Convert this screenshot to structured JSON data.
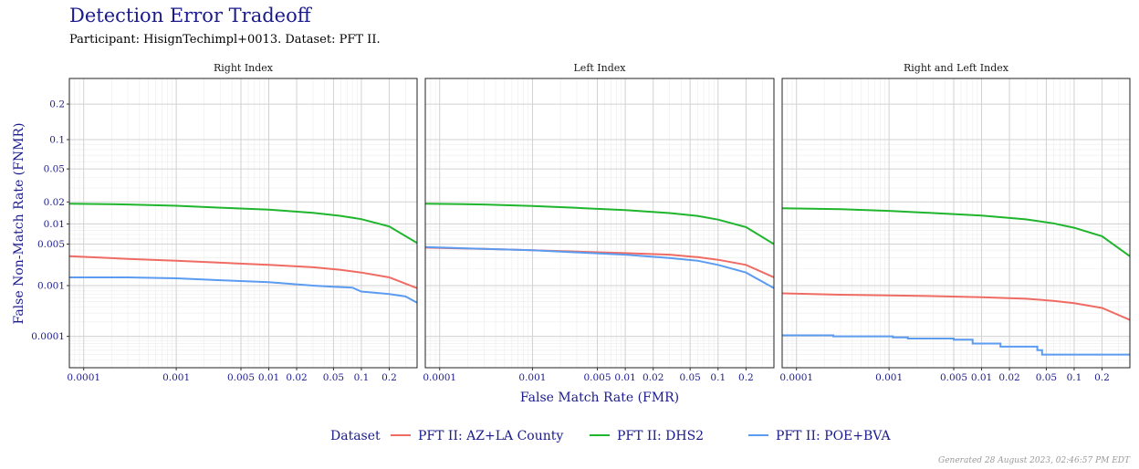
{
  "header": {
    "title": "Detection Error Tradeoff",
    "subtitle": "Participant: HisignTechimpl+0013. Dataset: PFT II."
  },
  "footer": {
    "generated": "Generated 28 August 2023, 02:46:57 PM EDT"
  },
  "colors": {
    "title": "#1a1a8c",
    "axis_text": "#1a1a8c",
    "grid_major": "#d2d2d2",
    "grid_minor": "#ececec"
  },
  "chart_data": {
    "type": "line",
    "xlabel": "False Match Rate (FMR)",
    "ylabel": "False Non-Match Rate (FNMR)",
    "x_scale": "log",
    "y_scale": "probit",
    "xlim": [
      7e-05,
      0.4
    ],
    "ylim": [
      2e-05,
      0.3
    ],
    "x_ticks": [
      0.0001,
      0.001,
      0.005,
      0.01,
      0.02,
      0.05,
      0.1,
      0.2
    ],
    "x_tick_labels": [
      "0.0001",
      "0.001",
      "0.005",
      "0.01",
      "0.02",
      "0.05",
      "0.1",
      "0.2"
    ],
    "y_ticks": [
      0.0001,
      0.001,
      0.005,
      0.01,
      0.02,
      0.05,
      0.1,
      0.2
    ],
    "y_tick_labels": [
      "0.0001",
      "0.001",
      "0.005",
      "0.01",
      "0.02",
      "0.05",
      "0.1",
      "0.2"
    ],
    "legend": {
      "title": "Dataset",
      "position": "bottom",
      "entries": [
        {
          "name": "PFT II: AZ+LA County",
          "color": "#ef6b63"
        },
        {
          "name": "PFT II: DHS2",
          "color": "#1fb52c"
        },
        {
          "name": "PFT II: POE+BVA",
          "color": "#5b9bf0"
        }
      ]
    },
    "grid": true,
    "panels": [
      {
        "title": "Right Index",
        "series": [
          {
            "name": "PFT II: AZ+LA County",
            "color": "#ef6b63",
            "x": [
              7e-05,
              0.0003,
              0.001,
              0.003,
              0.01,
              0.03,
              0.06,
              0.1,
              0.2,
              0.4
            ],
            "y": [
              0.0032,
              0.0029,
              0.0027,
              0.0025,
              0.0023,
              0.0021,
              0.0019,
              0.0017,
              0.0014,
              0.0009
            ]
          },
          {
            "name": "PFT II: DHS2",
            "color": "#1fb52c",
            "x": [
              7e-05,
              0.0003,
              0.001,
              0.003,
              0.01,
              0.03,
              0.06,
              0.1,
              0.2,
              0.4
            ],
            "y": [
              0.019,
              0.0185,
              0.0178,
              0.0168,
              0.0158,
              0.0143,
              0.013,
              0.0117,
              0.0092,
              0.0052
            ]
          },
          {
            "name": "PFT II: POE+BVA",
            "color": "#5b9bf0",
            "x": [
              7e-05,
              0.0003,
              0.001,
              0.003,
              0.01,
              0.03,
              0.05,
              0.08,
              0.1,
              0.2,
              0.3,
              0.4
            ],
            "y": [
              0.0014,
              0.0014,
              0.00135,
              0.00125,
              0.00115,
              0.001,
              0.00095,
              0.00092,
              0.00078,
              0.0007,
              0.00063,
              0.00048
            ]
          }
        ]
      },
      {
        "title": "Left Index",
        "series": [
          {
            "name": "PFT II: AZ+LA County",
            "color": "#ef6b63",
            "x": [
              7e-05,
              0.0003,
              0.001,
              0.003,
              0.01,
              0.03,
              0.06,
              0.1,
              0.2,
              0.4
            ],
            "y": [
              0.0044,
              0.0042,
              0.004,
              0.0038,
              0.0036,
              0.0034,
              0.0031,
              0.0028,
              0.0023,
              0.0014
            ]
          },
          {
            "name": "PFT II: DHS2",
            "color": "#1fb52c",
            "x": [
              7e-05,
              0.0003,
              0.001,
              0.003,
              0.01,
              0.03,
              0.06,
              0.1,
              0.2,
              0.4
            ],
            "y": [
              0.019,
              0.0185,
              0.0177,
              0.0167,
              0.0156,
              0.0142,
              0.013,
              0.0115,
              0.009,
              0.005
            ]
          },
          {
            "name": "PFT II: POE+BVA",
            "color": "#5b9bf0",
            "x": [
              7e-05,
              0.0003,
              0.001,
              0.003,
              0.01,
              0.03,
              0.06,
              0.1,
              0.2,
              0.4
            ],
            "y": [
              0.0045,
              0.0042,
              0.004,
              0.0037,
              0.0034,
              0.003,
              0.0027,
              0.0023,
              0.0017,
              0.0009
            ]
          }
        ]
      },
      {
        "title": "Right and Left Index",
        "series": [
          {
            "name": "PFT II: AZ+LA County",
            "color": "#ef6b63",
            "x": [
              7e-05,
              0.0003,
              0.001,
              0.003,
              0.01,
              0.03,
              0.06,
              0.1,
              0.2,
              0.4
            ],
            "y": [
              0.00072,
              0.00068,
              0.00066,
              0.00064,
              0.00061,
              0.00057,
              0.00052,
              0.00047,
              0.00038,
              0.00022
            ]
          },
          {
            "name": "PFT II: DHS2",
            "color": "#1fb52c",
            "x": [
              7e-05,
              0.0003,
              0.001,
              0.003,
              0.01,
              0.03,
              0.06,
              0.1,
              0.2,
              0.4
            ],
            "y": [
              0.0165,
              0.016,
              0.0152,
              0.0142,
              0.0131,
              0.0116,
              0.0102,
              0.0088,
              0.0066,
              0.0032
            ]
          },
          {
            "name": "PFT II: POE+BVA",
            "color": "#5b9bf0",
            "step": true,
            "x": [
              7e-05,
              0.00025,
              0.0011,
              0.0016,
              0.005,
              0.008,
              0.016,
              0.04,
              0.045,
              0.4
            ],
            "y": [
              0.000105,
              0.0001,
              9.5e-05,
              9e-05,
              8.5e-05,
              7e-05,
              6e-05,
              5e-05,
              4e-05,
              4e-05
            ]
          }
        ]
      }
    ]
  }
}
